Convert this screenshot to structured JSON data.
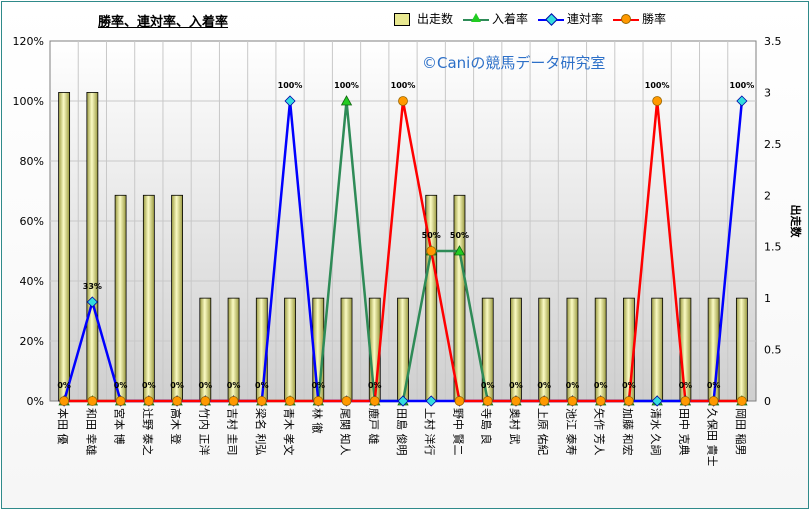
{
  "chart_data": {
    "type": "bar",
    "title": "勝率、連対率、入着率",
    "watermark": "©Caniの競馬データ研究室",
    "y2label": "出走数",
    "ylim": [
      0,
      120
    ],
    "y2lim": [
      0,
      3.5
    ],
    "ytick_labels": [
      "0%",
      "20%",
      "40%",
      "60%",
      "80%",
      "100%",
      "120%"
    ],
    "y2tick_labels": [
      "0",
      "0.5",
      "1",
      "1.5",
      "2",
      "2.5",
      "3",
      "3.5"
    ],
    "grid": true,
    "legend_position": "top",
    "categories": [
      "本田 優",
      "和田 幸雄",
      "宮本 博",
      "辻野 泰之",
      "高木 登",
      "竹内 正洋",
      "吉村 圭司",
      "梁名 利弘",
      "青木 孝文",
      "林 徹",
      "尾関 知人",
      "鹿戸 雄",
      "田島 俊明",
      "上村 洋行",
      "野中 賢二",
      "寺島 良",
      "奥村 武",
      "上原 佑紀",
      "池江 泰寿",
      "矢作 芳人",
      "加藤 和宏",
      "清水 久詞",
      "田中 克典",
      "久保田 貴士",
      "岡田 稲男"
    ],
    "series": [
      {
        "name": "出走数",
        "kind": "bar",
        "axis": "right",
        "color": "#e8e890",
        "values": [
          3,
          3,
          2,
          2,
          2,
          1,
          1,
          1,
          1,
          1,
          1,
          1,
          1,
          2,
          2,
          1,
          1,
          1,
          1,
          1,
          1,
          1,
          1,
          1,
          1
        ]
      },
      {
        "name": "入着率",
        "kind": "line",
        "axis": "left",
        "color": "#2e8b57",
        "values": [
          0,
          0,
          0,
          0,
          0,
          0,
          0,
          0,
          0,
          0,
          100,
          0,
          0,
          50,
          50,
          0,
          0,
          0,
          0,
          0,
          0,
          0,
          0,
          0,
          0
        ]
      },
      {
        "name": "連対率",
        "kind": "line",
        "axis": "left",
        "color": "#0000ff",
        "values": [
          0,
          33,
          0,
          0,
          0,
          0,
          0,
          0,
          100,
          0,
          0,
          0,
          0,
          0,
          0,
          0,
          0,
          0,
          0,
          0,
          0,
          0,
          0,
          0,
          100
        ]
      },
      {
        "name": "勝率",
        "kind": "line",
        "axis": "left",
        "color": "#ff0000",
        "values": [
          0,
          0,
          0,
          0,
          0,
          0,
          0,
          0,
          0,
          0,
          0,
          0,
          100,
          50,
          0,
          0,
          0,
          0,
          0,
          0,
          0,
          100,
          0,
          0,
          0
        ]
      }
    ],
    "data_labels": {
      "values": [
        "0%",
        "33%",
        "0%",
        "0%",
        "0%",
        "0%",
        "0%",
        "0%",
        "100%",
        "0%",
        "100%",
        "0%",
        "100%",
        "50%",
        "50%",
        "0%",
        "0%",
        "0%",
        "0%",
        "0%",
        "0%",
        "100%",
        "0%",
        "0%",
        "100%"
      ]
    }
  }
}
